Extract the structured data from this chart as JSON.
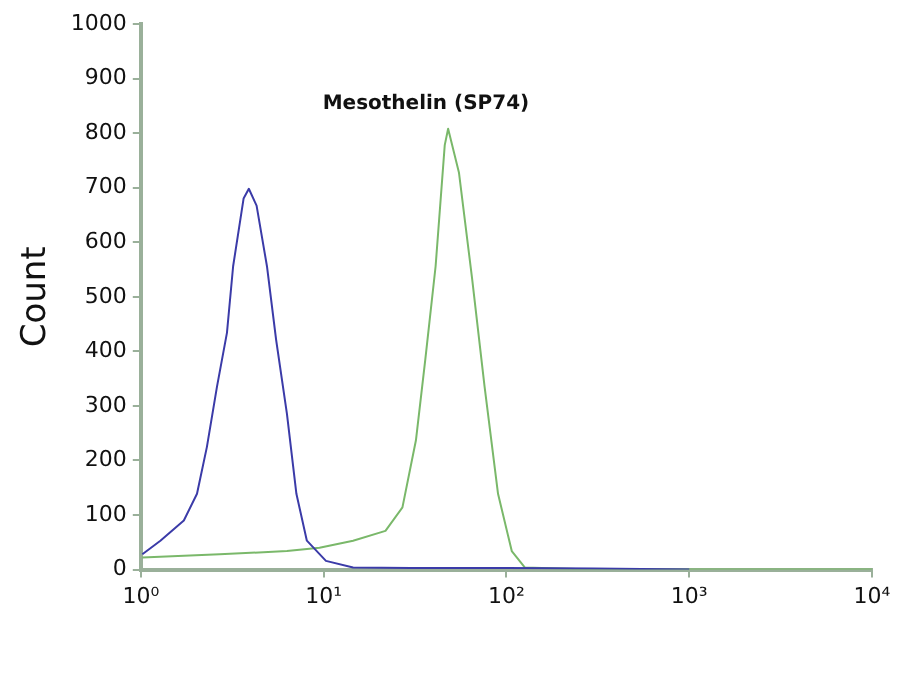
{
  "chart_data": {
    "type": "line",
    "title": "Mesothelin (SP74)",
    "ylabel": "Count",
    "log": "x",
    "grid": false,
    "legend": false,
    "marker": "none",
    "line_style": "solid",
    "xlim": [
      1,
      10000
    ],
    "xticks": [
      {
        "value": 1,
        "label": "10⁰"
      },
      {
        "value": 10,
        "label": "10¹"
      },
      {
        "value": 100,
        "label": "10²"
      },
      {
        "value": 1000,
        "label": "10³"
      },
      {
        "value": 10000,
        "label": "10⁴"
      }
    ],
    "ylim": [
      0,
      1000
    ],
    "yticks": [
      0,
      100,
      200,
      300,
      400,
      500,
      600,
      700,
      800,
      900,
      1000
    ],
    "series": [
      {
        "color": "#3b3ba8",
        "x": [
          1.02,
          1.28,
          1.72,
          2.03,
          2.3,
          2.61,
          2.96,
          3.2,
          3.65,
          3.9,
          4.3,
          4.9,
          5.5,
          6.3,
          7.1,
          8.1,
          10.3,
          14.5,
          30,
          100,
          300,
          1000
        ],
        "values": [
          28,
          53,
          90,
          139,
          225,
          335,
          434,
          556,
          680,
          698,
          667,
          556,
          421,
          286,
          139,
          53,
          16,
          4,
          3,
          3,
          2,
          0
        ]
      },
      {
        "color": "#7ab86a",
        "x": [
          1.02,
          2.7,
          6.3,
          9.5,
          14.5,
          21.8,
          27,
          32,
          36,
          41,
          46,
          48,
          55,
          65,
          76,
          90,
          107,
          126,
          300,
          1000,
          10000
        ],
        "values": [
          22,
          28,
          34,
          40,
          53,
          71,
          114,
          237,
          385,
          556,
          778,
          808,
          728,
          532,
          335,
          139,
          34,
          4,
          0,
          0,
          0
        ]
      }
    ]
  }
}
